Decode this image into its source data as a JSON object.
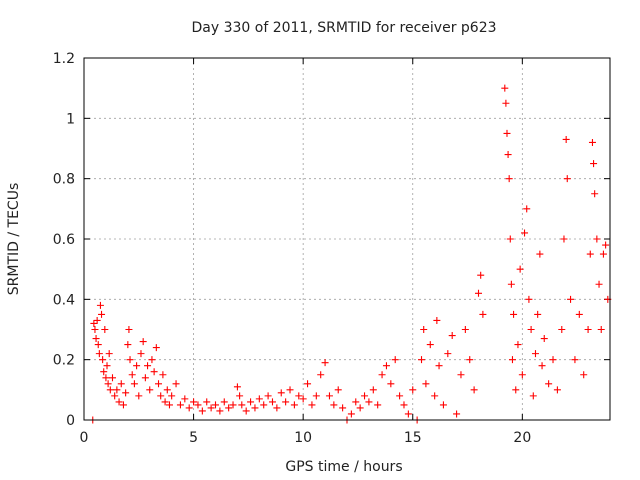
{
  "chart_data": {
    "type": "scatter",
    "title": "Day 330 of 2011, SRMTID for receiver p623",
    "xlabel": "GPS time / hours",
    "ylabel": "SRMTID / TECUs",
    "xlim": [
      0,
      24
    ],
    "ylim": [
      0,
      1.2
    ],
    "xticks": [
      0,
      5,
      10,
      15,
      20
    ],
    "xtick_labels": [
      "0",
      "5",
      "10",
      "15",
      "20"
    ],
    "yticks": [
      0,
      0.2,
      0.4,
      0.6,
      0.8,
      1,
      1.2
    ],
    "ytick_labels": [
      "0",
      "0.2",
      "0.4",
      "0.6",
      "0.8",
      "1",
      "1.2"
    ],
    "grid": true,
    "marker": "+",
    "series": [
      {
        "name": "SRMTID p623",
        "color": "#ff0000",
        "points": [
          [
            0.4,
            0.0
          ],
          [
            0.45,
            0.32
          ],
          [
            0.5,
            0.3
          ],
          [
            0.55,
            0.27
          ],
          [
            0.6,
            0.33
          ],
          [
            0.65,
            0.25
          ],
          [
            0.7,
            0.22
          ],
          [
            0.75,
            0.38
          ],
          [
            0.8,
            0.35
          ],
          [
            0.85,
            0.2
          ],
          [
            0.9,
            0.16
          ],
          [
            0.95,
            0.3
          ],
          [
            1.0,
            0.14
          ],
          [
            1.05,
            0.18
          ],
          [
            1.1,
            0.12
          ],
          [
            1.15,
            0.22
          ],
          [
            1.2,
            0.1
          ],
          [
            1.3,
            0.14
          ],
          [
            1.4,
            0.08
          ],
          [
            1.5,
            0.1
          ],
          [
            1.6,
            0.06
          ],
          [
            1.7,
            0.12
          ],
          [
            1.8,
            0.05
          ],
          [
            1.9,
            0.09
          ],
          [
            2.0,
            0.25
          ],
          [
            2.05,
            0.3
          ],
          [
            2.1,
            0.2
          ],
          [
            2.2,
            0.15
          ],
          [
            2.3,
            0.12
          ],
          [
            2.4,
            0.18
          ],
          [
            2.5,
            0.08
          ],
          [
            2.6,
            0.22
          ],
          [
            2.7,
            0.26
          ],
          [
            2.8,
            0.14
          ],
          [
            2.9,
            0.18
          ],
          [
            3.0,
            0.1
          ],
          [
            3.1,
            0.2
          ],
          [
            3.2,
            0.16
          ],
          [
            3.3,
            0.24
          ],
          [
            3.4,
            0.12
          ],
          [
            3.5,
            0.08
          ],
          [
            3.6,
            0.15
          ],
          [
            3.7,
            0.06
          ],
          [
            3.8,
            0.1
          ],
          [
            3.9,
            0.05
          ],
          [
            4.0,
            0.08
          ],
          [
            4.2,
            0.12
          ],
          [
            4.4,
            0.05
          ],
          [
            4.6,
            0.07
          ],
          [
            4.8,
            0.04
          ],
          [
            5.0,
            0.06
          ],
          [
            5.2,
            0.05
          ],
          [
            5.4,
            0.03
          ],
          [
            5.6,
            0.06
          ],
          [
            5.8,
            0.04
          ],
          [
            6.0,
            0.05
          ],
          [
            6.2,
            0.03
          ],
          [
            6.4,
            0.06
          ],
          [
            6.6,
            0.04
          ],
          [
            6.8,
            0.05
          ],
          [
            7.0,
            0.11
          ],
          [
            7.1,
            0.08
          ],
          [
            7.2,
            0.05
          ],
          [
            7.4,
            0.03
          ],
          [
            7.6,
            0.06
          ],
          [
            7.8,
            0.04
          ],
          [
            8.0,
            0.07
          ],
          [
            8.2,
            0.05
          ],
          [
            8.4,
            0.08
          ],
          [
            8.6,
            0.06
          ],
          [
            8.8,
            0.04
          ],
          [
            9.0,
            0.09
          ],
          [
            9.2,
            0.06
          ],
          [
            9.4,
            0.1
          ],
          [
            9.6,
            0.05
          ],
          [
            9.8,
            0.08
          ],
          [
            10.0,
            0.07
          ],
          [
            10.2,
            0.12
          ],
          [
            10.4,
            0.05
          ],
          [
            10.6,
            0.08
          ],
          [
            10.8,
            0.15
          ],
          [
            11.0,
            0.19
          ],
          [
            11.2,
            0.08
          ],
          [
            11.4,
            0.05
          ],
          [
            11.6,
            0.1
          ],
          [
            11.8,
            0.04
          ],
          [
            12.0,
            0.0
          ],
          [
            12.2,
            0.02
          ],
          [
            12.4,
            0.06
          ],
          [
            12.6,
            0.04
          ],
          [
            12.8,
            0.08
          ],
          [
            13.0,
            0.06
          ],
          [
            13.2,
            0.1
          ],
          [
            13.4,
            0.05
          ],
          [
            13.6,
            0.15
          ],
          [
            13.8,
            0.18
          ],
          [
            14.0,
            0.12
          ],
          [
            14.2,
            0.2
          ],
          [
            14.4,
            0.08
          ],
          [
            14.6,
            0.05
          ],
          [
            14.8,
            0.02
          ],
          [
            15.0,
            0.1
          ],
          [
            15.2,
            0.0
          ],
          [
            15.4,
            0.2
          ],
          [
            15.5,
            0.3
          ],
          [
            15.6,
            0.12
          ],
          [
            15.8,
            0.25
          ],
          [
            16.0,
            0.08
          ],
          [
            16.1,
            0.33
          ],
          [
            16.2,
            0.18
          ],
          [
            16.4,
            0.05
          ],
          [
            16.6,
            0.22
          ],
          [
            16.8,
            0.28
          ],
          [
            17.0,
            0.02
          ],
          [
            17.2,
            0.15
          ],
          [
            17.4,
            0.3
          ],
          [
            17.6,
            0.2
          ],
          [
            17.8,
            0.1
          ],
          [
            18.0,
            0.42
          ],
          [
            18.1,
            0.48
          ],
          [
            18.2,
            0.35
          ],
          [
            19.2,
            1.1
          ],
          [
            19.25,
            1.05
          ],
          [
            19.3,
            0.95
          ],
          [
            19.35,
            0.88
          ],
          [
            19.4,
            0.8
          ],
          [
            19.45,
            0.6
          ],
          [
            19.5,
            0.45
          ],
          [
            19.55,
            0.2
          ],
          [
            19.6,
            0.35
          ],
          [
            19.7,
            0.1
          ],
          [
            19.8,
            0.25
          ],
          [
            19.9,
            0.5
          ],
          [
            20.0,
            0.15
          ],
          [
            20.1,
            0.62
          ],
          [
            20.2,
            0.7
          ],
          [
            20.3,
            0.4
          ],
          [
            20.4,
            0.3
          ],
          [
            20.5,
            0.08
          ],
          [
            20.6,
            0.22
          ],
          [
            20.7,
            0.35
          ],
          [
            20.8,
            0.55
          ],
          [
            20.9,
            0.18
          ],
          [
            21.0,
            0.27
          ],
          [
            21.2,
            0.12
          ],
          [
            21.4,
            0.2
          ],
          [
            21.6,
            0.1
          ],
          [
            21.8,
            0.3
          ],
          [
            21.9,
            0.6
          ],
          [
            22.0,
            0.93
          ],
          [
            22.05,
            0.8
          ],
          [
            22.2,
            0.4
          ],
          [
            22.4,
            0.2
          ],
          [
            22.6,
            0.35
          ],
          [
            22.8,
            0.15
          ],
          [
            23.0,
            0.3
          ],
          [
            23.1,
            0.55
          ],
          [
            23.2,
            0.92
          ],
          [
            23.25,
            0.85
          ],
          [
            23.3,
            0.75
          ],
          [
            23.4,
            0.6
          ],
          [
            23.5,
            0.45
          ],
          [
            23.6,
            0.3
          ],
          [
            23.7,
            0.55
          ],
          [
            23.8,
            0.58
          ],
          [
            23.9,
            0.4
          ]
        ]
      }
    ]
  }
}
